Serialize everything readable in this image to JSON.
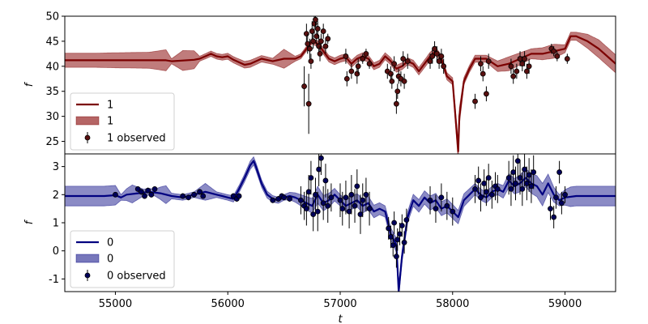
{
  "xlabel": "t",
  "xlim": [
    54550,
    59450
  ],
  "xticks": [
    55000,
    56000,
    57000,
    58000,
    59000
  ],
  "chart_data": [
    {
      "type": "line",
      "panel": "top",
      "ylabel": "f",
      "ylim": [
        22.5,
        50
      ],
      "yticks": [
        25,
        30,
        35,
        40,
        45,
        50
      ],
      "line_color": "#7b0000",
      "band_color": "#b56565",
      "point_color": "#5a1010",
      "legend": {
        "placement": "lower-left",
        "line_label": "1",
        "band_label": "1",
        "points_label": "1 observed"
      },
      "mean_x": [
        54550,
        54800,
        55100,
        55450,
        55500,
        55700,
        55750,
        55800,
        55850,
        55900,
        55950,
        56000,
        56050,
        56100,
        56150,
        56200,
        56300,
        56400,
        56500,
        56600,
        56650,
        56700,
        56750,
        56800,
        56850,
        56900,
        56950,
        57000,
        57050,
        57100,
        57150,
        57200,
        57250,
        57300,
        57350,
        57400,
        57450,
        57500,
        57550,
        57600,
        57650,
        57700,
        57750,
        57800,
        57850,
        57900,
        57950,
        58000,
        58050,
        58060,
        58100,
        58150,
        58200,
        58300,
        58400,
        58500,
        58600,
        58700,
        58800,
        58900,
        59000,
        59050,
        59100,
        59200,
        59300,
        59400,
        59450
      ],
      "mean_y": [
        41.2,
        41.2,
        41.2,
        41.2,
        41.0,
        41.3,
        41.5,
        42.0,
        42.5,
        42.0,
        41.8,
        42.0,
        41.3,
        40.8,
        40.3,
        40.5,
        41.5,
        41.0,
        41.5,
        41.5,
        42.0,
        43.5,
        45.0,
        44.5,
        43.0,
        41.5,
        41.0,
        41.5,
        41.8,
        40.5,
        41.5,
        42.0,
        41.5,
        40.0,
        40.5,
        42.0,
        41.0,
        39.5,
        40.0,
        41.0,
        40.5,
        39.0,
        40.5,
        42.0,
        43.0,
        41.5,
        38.0,
        37.0,
        23.0,
        30.0,
        37.0,
        39.5,
        41.5,
        41.5,
        40.0,
        40.5,
        41.5,
        42.5,
        42.5,
        43.0,
        43.5,
        46.0,
        46.0,
        45.0,
        43.5,
        41.5,
        40.5
      ],
      "band_x": [
        54550,
        54800,
        55000,
        55300,
        55450,
        55500,
        55600,
        55700,
        55750,
        56000,
        56200,
        56400,
        56500,
        56600,
        56700,
        56800,
        57000,
        57200,
        57400,
        57600,
        57800,
        58000,
        58050,
        58100,
        58300,
        58500,
        58700,
        58900,
        59000,
        59100,
        59200,
        59300,
        59450
      ],
      "band_half": [
        1.4,
        1.4,
        1.5,
        1.6,
        2.1,
        0.5,
        2.0,
        1.8,
        0.5,
        0.6,
        0.7,
        0.6,
        1.9,
        0.5,
        0.5,
        0.6,
        0.7,
        0.7,
        0.7,
        0.7,
        0.8,
        0.7,
        2.0,
        0.7,
        0.7,
        1.4,
        1.0,
        1.4,
        0.8,
        0.8,
        1.4,
        1.8,
        1.8
      ],
      "points": [
        [
          56680,
          36.0,
          4.0
        ],
        [
          56700,
          46.5,
          2.0
        ],
        [
          56710,
          44.5,
          2.0
        ],
        [
          56720,
          32.5,
          6.0
        ],
        [
          56730,
          43.5,
          2.0
        ],
        [
          56740,
          41.0,
          1.5
        ],
        [
          56750,
          47.0,
          2.0
        ],
        [
          56760,
          45.0,
          1.5
        ],
        [
          56770,
          48.5,
          2.0
        ],
        [
          56780,
          49.3,
          1.5
        ],
        [
          56790,
          46.0,
          2.0
        ],
        [
          56800,
          47.5,
          1.5
        ],
        [
          56810,
          44.0,
          2.0
        ],
        [
          56820,
          42.5,
          1.5
        ],
        [
          56830,
          45.0,
          1.5
        ],
        [
          56850,
          47.0,
          1.5
        ],
        [
          56870,
          44.0,
          1.5
        ],
        [
          56890,
          45.5,
          1.0
        ],
        [
          57050,
          42.0,
          1.5
        ],
        [
          57060,
          37.5,
          1.5
        ],
        [
          57100,
          39.0,
          1.5
        ],
        [
          57150,
          38.5,
          2.0
        ],
        [
          57160,
          40.0,
          1.5
        ],
        [
          57200,
          41.5,
          1.0
        ],
        [
          57230,
          42.5,
          1.0
        ],
        [
          57260,
          40.5,
          1.0
        ],
        [
          57420,
          39.0,
          1.5
        ],
        [
          57450,
          38.5,
          1.5
        ],
        [
          57460,
          37.0,
          1.5
        ],
        [
          57480,
          40.5,
          1.5
        ],
        [
          57500,
          32.5,
          2.0
        ],
        [
          57510,
          35.0,
          1.5
        ],
        [
          57520,
          38.0,
          1.5
        ],
        [
          57540,
          37.5,
          1.5
        ],
        [
          57560,
          41.5,
          1.5
        ],
        [
          57570,
          37.0,
          1.5
        ],
        [
          57600,
          41.0,
          1.5
        ],
        [
          57800,
          41.0,
          1.5
        ],
        [
          57820,
          42.0,
          1.5
        ],
        [
          57840,
          43.5,
          1.5
        ],
        [
          57860,
          42.5,
          1.5
        ],
        [
          57880,
          41.0,
          1.5
        ],
        [
          57900,
          42.0,
          1.5
        ],
        [
          57920,
          40.0,
          1.5
        ],
        [
          58200,
          33.0,
          1.5
        ],
        [
          58250,
          40.5,
          1.5
        ],
        [
          58270,
          38.5,
          1.5
        ],
        [
          58300,
          34.5,
          1.5
        ],
        [
          58320,
          41.0,
          1.5
        ],
        [
          58520,
          40.0,
          1.5
        ],
        [
          58540,
          38.0,
          1.5
        ],
        [
          58570,
          39.0,
          1.5
        ],
        [
          58600,
          41.5,
          1.5
        ],
        [
          58620,
          40.5,
          1.5
        ],
        [
          58640,
          41.5,
          1.5
        ],
        [
          58660,
          39.0,
          1.5
        ],
        [
          58680,
          40.0,
          1.5
        ],
        [
          58880,
          43.5,
          1.0
        ],
        [
          58900,
          43.0,
          1.0
        ],
        [
          58930,
          42.0,
          1.0
        ],
        [
          59020,
          41.5,
          1.0
        ]
      ]
    },
    {
      "type": "line",
      "panel": "bottom",
      "ylabel": "f",
      "ylim": [
        -1.45,
        3.45
      ],
      "yticks": [
        -1,
        0,
        1,
        2,
        3
      ],
      "line_color": "#000080",
      "band_color": "#7777bb",
      "point_color": "#00005a",
      "legend": {
        "placement": "lower-left",
        "line_label": "0",
        "band_label": "0",
        "points_label": "0 observed"
      },
      "mean_x": [
        54550,
        54900,
        55000,
        55050,
        55100,
        55200,
        55300,
        55400,
        55500,
        55600,
        55700,
        55800,
        55900,
        55950,
        56000,
        56050,
        56100,
        56150,
        56200,
        56230,
        56250,
        56300,
        56350,
        56400,
        56450,
        56500,
        56550,
        56600,
        56650,
        56700,
        56750,
        56800,
        56850,
        56900,
        56950,
        57000,
        57050,
        57100,
        57150,
        57200,
        57250,
        57300,
        57350,
        57400,
        57450,
        57500,
        57520,
        57550,
        57600,
        57650,
        57700,
        57750,
        57800,
        57850,
        57900,
        57950,
        58000,
        58050,
        58100,
        58150,
        58200,
        58250,
        58300,
        58350,
        58400,
        58450,
        58500,
        58550,
        58600,
        58650,
        58700,
        58750,
        58800,
        58850,
        58900,
        58950,
        59000,
        59100,
        59200,
        59300,
        59450
      ],
      "mean_y": [
        1.95,
        1.95,
        1.98,
        1.9,
        2.0,
        2.05,
        2.1,
        2.05,
        1.95,
        1.9,
        2.0,
        2.1,
        2.0,
        1.95,
        1.9,
        1.85,
        2.2,
        2.6,
        3.05,
        3.2,
        3.0,
        2.4,
        2.0,
        1.85,
        1.8,
        1.9,
        1.95,
        1.9,
        1.8,
        1.7,
        1.6,
        2.0,
        1.7,
        1.8,
        2.0,
        1.8,
        1.6,
        1.7,
        1.8,
        1.6,
        1.7,
        1.4,
        1.5,
        1.4,
        0.6,
        0.2,
        -1.45,
        -0.2,
        1.2,
        1.8,
        1.6,
        1.9,
        1.7,
        1.8,
        1.5,
        1.6,
        1.4,
        1.2,
        1.8,
        2.0,
        2.2,
        2.0,
        1.9,
        2.1,
        2.2,
        2.1,
        2.5,
        2.3,
        2.4,
        2.6,
        2.4,
        2.3,
        2.0,
        2.4,
        2.0,
        1.8,
        1.9,
        1.95,
        1.95,
        1.95,
        1.95
      ],
      "band_x": [
        54550,
        54900,
        55000,
        55050,
        55150,
        55250,
        55350,
        55450,
        55500,
        55700,
        55800,
        55900,
        56000,
        56200,
        56500,
        56800,
        57000,
        57200,
        57400,
        57500,
        57550,
        57600,
        57800,
        58000,
        58200,
        58400,
        58600,
        58800,
        58950,
        59050,
        59200,
        59450
      ],
      "band_half": [
        0.35,
        0.35,
        0.35,
        0.1,
        0.32,
        0.12,
        0.12,
        0.32,
        0.1,
        0.1,
        0.3,
        0.1,
        0.1,
        0.15,
        0.1,
        0.3,
        0.2,
        0.25,
        0.2,
        0.25,
        0.2,
        0.2,
        0.25,
        0.25,
        0.2,
        0.2,
        0.3,
        0.4,
        0.2,
        0.35,
        0.35,
        0.35
      ],
      "points": [
        [
          55000,
          2.0,
          0.08
        ],
        [
          55200,
          2.2,
          0.1
        ],
        [
          55230,
          2.1,
          0.1
        ],
        [
          55260,
          1.95,
          0.1
        ],
        [
          55290,
          2.15,
          0.1
        ],
        [
          55320,
          2.0,
          0.1
        ],
        [
          55350,
          2.2,
          0.1
        ],
        [
          55600,
          1.95,
          0.1
        ],
        [
          55650,
          1.9,
          0.1
        ],
        [
          55700,
          2.0,
          0.1
        ],
        [
          55750,
          2.1,
          0.1
        ],
        [
          55780,
          1.95,
          0.1
        ],
        [
          56050,
          1.95,
          0.1
        ],
        [
          56080,
          1.85,
          0.1
        ],
        [
          56100,
          1.95,
          0.1
        ],
        [
          56400,
          1.8,
          0.1
        ],
        [
          56450,
          1.85,
          0.1
        ],
        [
          56480,
          1.95,
          0.1
        ],
        [
          56500,
          1.9,
          0.1
        ],
        [
          56550,
          1.85,
          0.1
        ],
        [
          56650,
          1.8,
          0.5
        ],
        [
          56680,
          1.6,
          0.5
        ],
        [
          56700,
          1.5,
          0.6
        ],
        [
          56720,
          2.1,
          0.6
        ],
        [
          56740,
          2.6,
          0.6
        ],
        [
          56760,
          1.3,
          0.6
        ],
        [
          56780,
          2.0,
          0.6
        ],
        [
          56800,
          1.4,
          0.7
        ],
        [
          56810,
          2.9,
          0.6
        ],
        [
          56830,
          3.3,
          0.6
        ],
        [
          56850,
          1.7,
          0.6
        ],
        [
          56870,
          2.5,
          0.6
        ],
        [
          56890,
          1.6,
          0.6
        ],
        [
          56920,
          1.9,
          0.5
        ],
        [
          57000,
          1.8,
          0.6
        ],
        [
          57020,
          1.5,
          0.6
        ],
        [
          57050,
          1.9,
          0.6
        ],
        [
          57080,
          1.4,
          0.6
        ],
        [
          57100,
          2.0,
          0.7
        ],
        [
          57130,
          1.6,
          0.6
        ],
        [
          57150,
          2.3,
          0.6
        ],
        [
          57180,
          1.3,
          0.7
        ],
        [
          57200,
          1.8,
          0.6
        ],
        [
          57230,
          2.0,
          0.6
        ],
        [
          57260,
          1.5,
          0.6
        ],
        [
          57430,
          0.8,
          0.4
        ],
        [
          57450,
          0.5,
          0.4
        ],
        [
          57470,
          0.2,
          0.4
        ],
        [
          57480,
          1.0,
          0.4
        ],
        [
          57500,
          -0.2,
          0.4
        ],
        [
          57510,
          0.4,
          0.4
        ],
        [
          57530,
          0.6,
          0.4
        ],
        [
          57550,
          0.9,
          0.4
        ],
        [
          57570,
          0.3,
          0.4
        ],
        [
          57590,
          1.1,
          0.4
        ],
        [
          57800,
          1.8,
          0.5
        ],
        [
          57850,
          1.5,
          0.5
        ],
        [
          57900,
          1.9,
          0.5
        ],
        [
          57950,
          1.6,
          0.5
        ],
        [
          58000,
          1.4,
          0.5
        ],
        [
          58200,
          2.2,
          0.5
        ],
        [
          58230,
          2.5,
          0.5
        ],
        [
          58250,
          1.9,
          0.5
        ],
        [
          58280,
          2.4,
          0.5
        ],
        [
          58300,
          2.1,
          0.5
        ],
        [
          58320,
          2.6,
          0.5
        ],
        [
          58350,
          2.0,
          0.5
        ],
        [
          58380,
          2.3,
          0.5
        ],
        [
          58400,
          2.2,
          0.5
        ],
        [
          58500,
          2.6,
          0.6
        ],
        [
          58520,
          2.2,
          0.6
        ],
        [
          58540,
          2.8,
          0.6
        ],
        [
          58560,
          2.4,
          0.6
        ],
        [
          58580,
          3.2,
          0.6
        ],
        [
          58600,
          2.6,
          0.6
        ],
        [
          58620,
          2.2,
          0.6
        ],
        [
          58640,
          2.9,
          0.6
        ],
        [
          58660,
          2.4,
          0.6
        ],
        [
          58680,
          2.7,
          0.6
        ],
        [
          58700,
          2.3,
          0.6
        ],
        [
          58720,
          2.8,
          0.6
        ],
        [
          58870,
          1.5,
          0.4
        ],
        [
          58900,
          1.2,
          0.4
        ],
        [
          58920,
          1.9,
          0.4
        ],
        [
          58950,
          2.8,
          0.4
        ],
        [
          58970,
          1.7,
          0.4
        ],
        [
          59000,
          2.0,
          0.3
        ]
      ]
    }
  ]
}
